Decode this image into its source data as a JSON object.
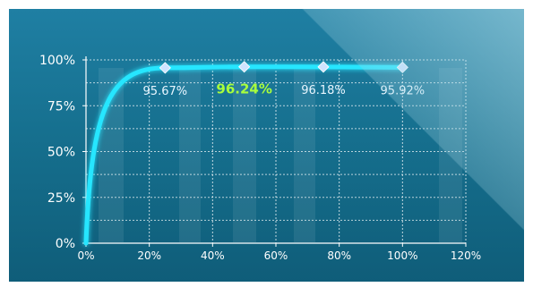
{
  "chart_data": {
    "type": "line",
    "x": [
      0,
      25,
      50,
      75,
      100
    ],
    "series": [
      {
        "values": [
          0,
          95.67,
          96.24,
          96.18,
          95.92
        ],
        "point_labels": [
          "",
          "95.67%",
          "96.24%",
          "96.18%",
          "95.92%"
        ],
        "highlight_index": 2
      }
    ],
    "x_ticks": [
      "0%",
      "20%",
      "40%",
      "60%",
      "80%",
      "100%",
      "120%"
    ],
    "y_ticks": [
      "0%",
      "25%",
      "50%",
      "75%",
      "100%"
    ],
    "xlim": [
      0,
      120
    ],
    "ylim": [
      0,
      100
    ],
    "grid": true,
    "colors": {
      "line": "#27e6ff",
      "marker": "#cfe4ff",
      "label": "#e8f6ff",
      "highlight_label": "#a9ff3c",
      "grid": "#ffffff"
    }
  }
}
